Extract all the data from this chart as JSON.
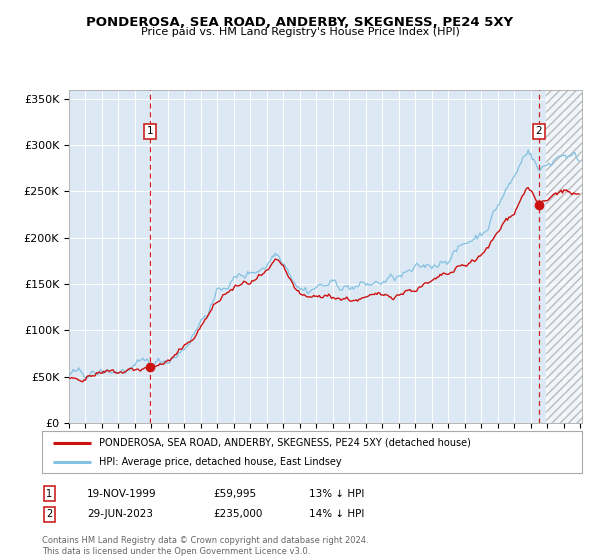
{
  "title": "PONDEROSA, SEA ROAD, ANDERBY, SKEGNESS, PE24 5XY",
  "subtitle": "Price paid vs. HM Land Registry's House Price Index (HPI)",
  "ylim": [
    0,
    360000
  ],
  "yticks": [
    0,
    50000,
    100000,
    150000,
    200000,
    250000,
    300000,
    350000
  ],
  "ytick_labels": [
    "£0",
    "£50K",
    "£100K",
    "£150K",
    "£200K",
    "£250K",
    "£300K",
    "£350K"
  ],
  "hpi_color": "#85c1e0",
  "price_color": "#cc1111",
  "dashed_line_color": "#cc2222",
  "bg_color": "#dce9f5",
  "legend_label_red": "PONDEROSA, SEA ROAD, ANDERBY, SKEGNESS, PE24 5XY (detached house)",
  "legend_label_blue": "HPI: Average price, detached house, East Lindsey",
  "transaction1_date": "19-NOV-1999",
  "transaction1_price": "£59,995",
  "transaction1_hpi": "13% ↓ HPI",
  "transaction2_date": "29-JUN-2023",
  "transaction2_price": "£235,000",
  "transaction2_hpi": "14% ↓ HPI",
  "footnote": "Contains HM Land Registry data © Crown copyright and database right 2024.\nThis data is licensed under the Open Government Licence v3.0.",
  "sale1_year": 1999.89,
  "sale1_value": 59995,
  "sale2_year": 2023.49,
  "sale2_value": 235000
}
